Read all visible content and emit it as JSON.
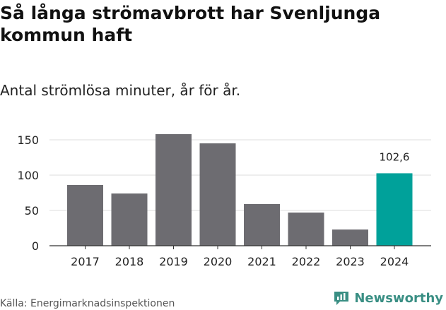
{
  "title": "Så långa strömavbrott har Svenljunga kommun haft",
  "subtitle": "Antal strömlösa minuter, år för år.",
  "source": "Källa: Energimarknadsinspektionen",
  "brand": "Newsworthy",
  "colors": {
    "bar": "#6d6c71",
    "highlight": "#00a19a",
    "grid": "#dcdcdc",
    "axis": "#333333",
    "brand": "#3a8f84"
  },
  "chart_data": {
    "type": "bar",
    "title": "Så långa strömavbrott har Svenljunga kommun haft",
    "subtitle": "Antal strömlösa minuter, år för år.",
    "xlabel": "",
    "ylabel": "",
    "categories": [
      "2017",
      "2018",
      "2019",
      "2020",
      "2021",
      "2022",
      "2023",
      "2024"
    ],
    "values": [
      86,
      74,
      158,
      145,
      59,
      47,
      23,
      102.6
    ],
    "highlight_index": 7,
    "annotation": {
      "category": "2024",
      "label": "102,6"
    },
    "ylim": [
      0,
      160
    ],
    "yticks": [
      0,
      50,
      100,
      150
    ],
    "grid": true
  }
}
